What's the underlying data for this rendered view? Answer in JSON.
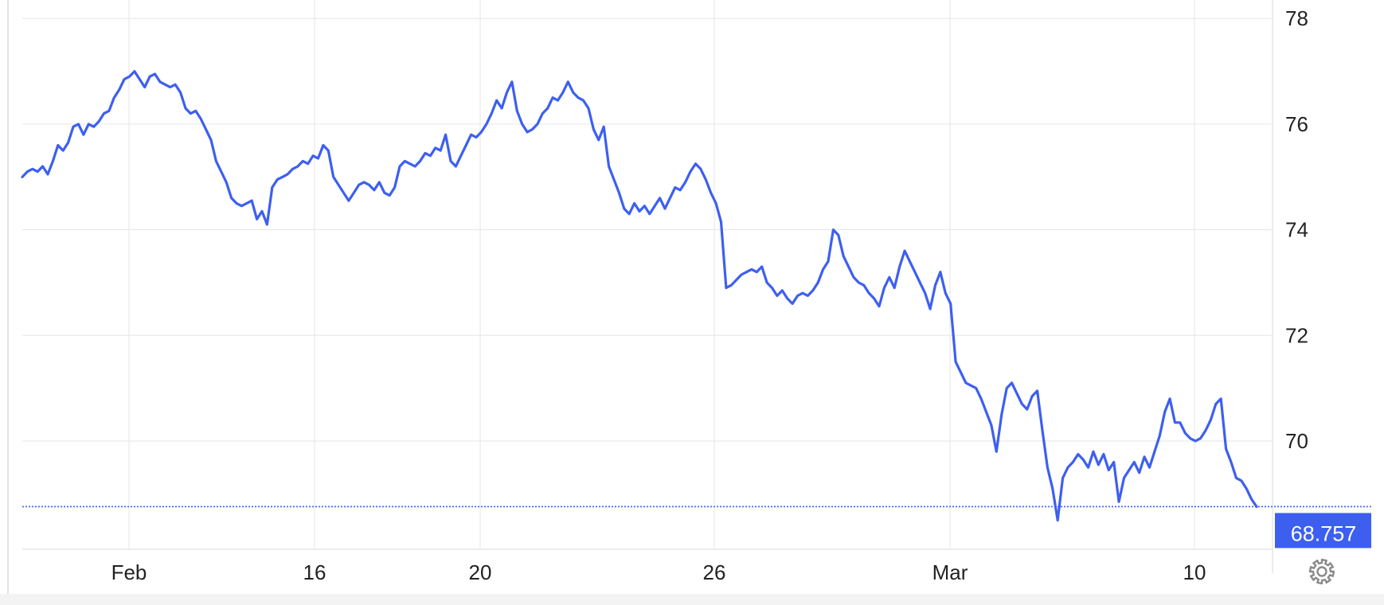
{
  "chart_data": {
    "type": "line",
    "title": "",
    "xlabel": "",
    "ylabel": "",
    "x_tick_labels": [
      "Feb",
      "16",
      "20",
      "26",
      "Mar",
      "10"
    ],
    "y_ticks": [
      70,
      72,
      74,
      76,
      78
    ],
    "ylim": [
      67.95,
      78.35
    ],
    "grid": true,
    "last_value": 68.757,
    "last_value_label": "68.757",
    "series": [
      {
        "values": [
          75.0,
          75.1,
          75.15,
          75.1,
          75.2,
          75.05,
          75.3,
          75.6,
          75.5,
          75.65,
          75.95,
          76.0,
          75.8,
          76.0,
          75.95,
          76.05,
          76.2,
          76.25,
          76.5,
          76.65,
          76.85,
          76.9,
          77.0,
          76.85,
          76.7,
          76.9,
          76.95,
          76.8,
          76.75,
          76.7,
          76.75,
          76.6,
          76.3,
          76.2,
          76.25,
          76.1,
          75.9,
          75.7,
          75.3,
          75.1,
          74.9,
          74.6,
          74.5,
          74.45,
          74.5,
          74.55,
          74.2,
          74.35,
          74.1,
          74.8,
          74.95,
          75.0,
          75.05,
          75.15,
          75.2,
          75.3,
          75.25,
          75.4,
          75.35,
          75.6,
          75.5,
          75.0,
          74.85,
          74.7,
          74.55,
          74.7,
          74.85,
          74.9,
          74.85,
          74.75,
          74.9,
          74.7,
          74.65,
          74.8,
          75.2,
          75.3,
          75.25,
          75.2,
          75.3,
          75.45,
          75.4,
          75.55,
          75.5,
          75.8,
          75.3,
          75.2,
          75.4,
          75.6,
          75.8,
          75.75,
          75.85,
          76.0,
          76.2,
          76.45,
          76.3,
          76.6,
          76.8,
          76.25,
          76.0,
          75.85,
          75.9,
          76.0,
          76.2,
          76.3,
          76.5,
          76.45,
          76.6,
          76.8,
          76.6,
          76.5,
          76.45,
          76.3,
          75.9,
          75.7,
          75.95,
          75.2,
          74.95,
          74.7,
          74.4,
          74.3,
          74.5,
          74.35,
          74.45,
          74.3,
          74.45,
          74.6,
          74.4,
          74.6,
          74.8,
          74.75,
          74.9,
          75.1,
          75.25,
          75.15,
          74.95,
          74.7,
          74.5,
          74.15,
          72.9,
          72.95,
          73.05,
          73.15,
          73.2,
          73.25,
          73.2,
          73.3,
          73.0,
          72.9,
          72.75,
          72.85,
          72.7,
          72.6,
          72.75,
          72.8,
          72.75,
          72.85,
          73.0,
          73.25,
          73.4,
          74.0,
          73.9,
          73.5,
          73.3,
          73.1,
          73.0,
          72.95,
          72.8,
          72.7,
          72.55,
          72.9,
          73.1,
          72.9,
          73.3,
          73.6,
          73.4,
          73.2,
          73.0,
          72.8,
          72.5,
          72.95,
          73.2,
          72.8,
          72.6,
          71.5,
          71.3,
          71.1,
          71.05,
          71.0,
          70.8,
          70.55,
          70.3,
          69.8,
          70.5,
          71.0,
          71.1,
          70.9,
          70.7,
          70.6,
          70.85,
          70.95,
          70.2,
          69.5,
          69.1,
          68.5,
          69.3,
          69.5,
          69.6,
          69.75,
          69.65,
          69.5,
          69.8,
          69.55,
          69.75,
          69.45,
          69.6,
          68.85,
          69.3,
          69.45,
          69.6,
          69.4,
          69.7,
          69.5,
          69.8,
          70.1,
          70.55,
          70.8,
          70.35,
          70.35,
          70.15,
          70.05,
          70.0,
          70.05,
          70.2,
          70.4,
          70.7,
          70.8,
          69.85,
          69.6,
          69.3,
          69.25,
          69.1,
          68.9,
          68.757
        ]
      }
    ]
  },
  "colors": {
    "line": "#3d5ff0",
    "badge": "#3d5ff0",
    "grid": "#e6e6e6",
    "text": "#222222",
    "gear": "#8a8a8a"
  },
  "icons": {
    "settings": "gear-icon"
  }
}
